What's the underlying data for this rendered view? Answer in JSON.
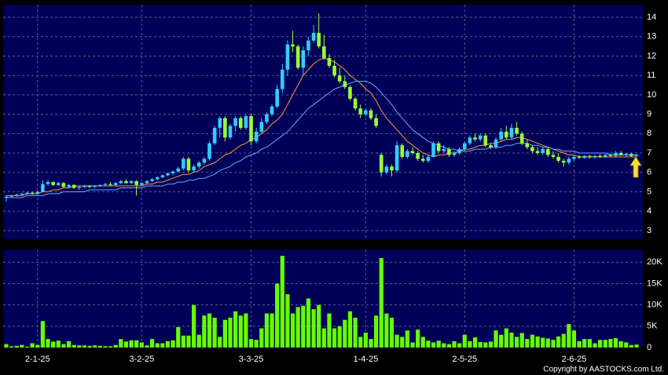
{
  "chart_data": {
    "type": "candlestick",
    "categories": [
      null,
      null,
      null,
      null,
      null,
      null,
      "2-1-25",
      null,
      null,
      null,
      null,
      null,
      null,
      null,
      null,
      null,
      null,
      null,
      null,
      null,
      null,
      null,
      null,
      null,
      null,
      null,
      "3-2-25",
      null,
      null,
      null,
      null,
      null,
      null,
      null,
      null,
      null,
      null,
      null,
      null,
      null,
      null,
      null,
      null,
      null,
      null,
      null,
      null,
      "3-3-25",
      null,
      null,
      null,
      null,
      null,
      null,
      null,
      null,
      null,
      null,
      null,
      null,
      null,
      null,
      null,
      null,
      null,
      null,
      null,
      null,
      null,
      "1-4-25",
      null,
      null,
      null,
      null,
      null,
      null,
      null,
      null,
      null,
      null,
      null,
      null,
      null,
      null,
      null,
      null,
      null,
      null,
      "2-5-25",
      null,
      null,
      null,
      null,
      null,
      null,
      null,
      null,
      null,
      null,
      null,
      null,
      null,
      null,
      null,
      null,
      null,
      null,
      null,
      null,
      "2-6-25",
      null,
      null,
      null,
      null,
      null,
      null,
      null,
      null,
      null,
      null,
      null,
      null
    ],
    "ohlc": [
      [
        4.7,
        4.8,
        4.5,
        4.75
      ],
      [
        4.75,
        4.85,
        4.7,
        4.8
      ],
      [
        4.8,
        4.9,
        4.75,
        4.85
      ],
      [
        4.85,
        4.95,
        4.8,
        4.9
      ],
      [
        4.9,
        5.0,
        4.85,
        4.95
      ],
      [
        4.95,
        5.0,
        4.85,
        4.9
      ],
      [
        4.9,
        5.05,
        4.85,
        5.0
      ],
      [
        5.0,
        5.6,
        5.0,
        5.4
      ],
      [
        5.4,
        5.6,
        5.3,
        5.5
      ],
      [
        5.5,
        5.55,
        5.3,
        5.35
      ],
      [
        5.35,
        5.5,
        5.3,
        5.45
      ],
      [
        5.45,
        5.5,
        5.2,
        5.25
      ],
      [
        5.25,
        5.4,
        5.2,
        5.35
      ],
      [
        5.35,
        5.4,
        5.15,
        5.2
      ],
      [
        5.2,
        5.3,
        5.1,
        5.25
      ],
      [
        5.25,
        5.35,
        5.2,
        5.3
      ],
      [
        5.3,
        5.35,
        5.2,
        5.25
      ],
      [
        5.25,
        5.35,
        5.2,
        5.3
      ],
      [
        5.3,
        5.4,
        5.25,
        5.35
      ],
      [
        5.35,
        5.45,
        5.3,
        5.4
      ],
      [
        5.4,
        5.5,
        5.3,
        5.35
      ],
      [
        5.35,
        5.5,
        5.3,
        5.45
      ],
      [
        5.45,
        5.6,
        5.4,
        5.55
      ],
      [
        5.55,
        5.65,
        5.4,
        5.45
      ],
      [
        5.45,
        5.6,
        5.4,
        5.55
      ],
      [
        5.55,
        5.6,
        4.8,
        5.35
      ],
      [
        5.35,
        5.5,
        5.3,
        5.45
      ],
      [
        5.45,
        5.6,
        5.4,
        5.55
      ],
      [
        5.55,
        5.7,
        5.5,
        5.65
      ],
      [
        5.65,
        5.8,
        5.6,
        5.75
      ],
      [
        5.75,
        5.9,
        5.7,
        5.85
      ],
      [
        5.85,
        6.0,
        5.8,
        5.95
      ],
      [
        5.95,
        6.1,
        5.85,
        6.05
      ],
      [
        6.05,
        6.3,
        6.0,
        6.2
      ],
      [
        6.2,
        6.8,
        6.1,
        6.7
      ],
      [
        6.7,
        6.8,
        6.0,
        6.1
      ],
      [
        6.1,
        6.4,
        6.0,
        6.3
      ],
      [
        6.3,
        6.6,
        6.2,
        6.5
      ],
      [
        6.5,
        6.8,
        6.4,
        6.7
      ],
      [
        6.7,
        7.6,
        6.6,
        7.5
      ],
      [
        7.5,
        8.4,
        7.4,
        8.3
      ],
      [
        8.3,
        8.9,
        7.8,
        8.8
      ],
      [
        8.8,
        8.9,
        7.6,
        7.8
      ],
      [
        7.8,
        8.5,
        7.7,
        8.4
      ],
      [
        8.4,
        8.9,
        8.1,
        8.8
      ],
      [
        8.8,
        8.9,
        8.2,
        8.3
      ],
      [
        8.3,
        9.0,
        8.2,
        8.9
      ],
      [
        8.9,
        9.0,
        7.4,
        7.6
      ],
      [
        7.6,
        8.3,
        7.5,
        8.1
      ],
      [
        8.1,
        8.8,
        8.0,
        8.6
      ],
      [
        8.6,
        9.1,
        8.5,
        9.0
      ],
      [
        9.0,
        9.5,
        8.9,
        9.4
      ],
      [
        9.4,
        10.5,
        9.3,
        10.3
      ],
      [
        10.3,
        11.6,
        10.1,
        11.3
      ],
      [
        11.3,
        12.8,
        11.0,
        12.6
      ],
      [
        12.6,
        13.3,
        12.2,
        12.5
      ],
      [
        12.5,
        12.6,
        11.3,
        11.4
      ],
      [
        11.4,
        12.5,
        11.0,
        12.3
      ],
      [
        12.3,
        13.0,
        12.0,
        12.8
      ],
      [
        12.8,
        13.6,
        12.7,
        13.2
      ],
      [
        13.2,
        14.2,
        12.4,
        12.5
      ],
      [
        12.5,
        13.1,
        11.8,
        11.9
      ],
      [
        11.9,
        12.1,
        11.4,
        11.5
      ],
      [
        11.5,
        11.8,
        10.9,
        11.0
      ],
      [
        11.0,
        11.4,
        10.6,
        10.7
      ],
      [
        10.7,
        11.0,
        10.3,
        10.4
      ],
      [
        10.4,
        10.5,
        9.7,
        9.8
      ],
      [
        9.8,
        9.9,
        9.2,
        9.3
      ],
      [
        9.3,
        9.5,
        8.8,
        9.0
      ],
      [
        9.0,
        9.3,
        8.9,
        9.2
      ],
      [
        9.2,
        9.3,
        8.7,
        8.8
      ],
      [
        8.8,
        9.0,
        8.3,
        8.4
      ],
      [
        6.9,
        7.0,
        5.8,
        6.0
      ],
      [
        6.0,
        6.4,
        5.9,
        6.3
      ],
      [
        6.3,
        6.4,
        5.8,
        6.1
      ],
      [
        6.1,
        7.6,
        6.0,
        7.4
      ],
      [
        7.4,
        7.5,
        6.7,
        6.8
      ],
      [
        6.8,
        7.2,
        6.7,
        7.1
      ],
      [
        7.1,
        7.3,
        6.9,
        7.0
      ],
      [
        7.0,
        7.1,
        6.6,
        6.7
      ],
      [
        6.7,
        6.9,
        6.5,
        6.6
      ],
      [
        6.6,
        6.9,
        6.5,
        6.8
      ],
      [
        6.8,
        7.6,
        6.8,
        7.5
      ],
      [
        7.5,
        7.6,
        7.0,
        7.1
      ],
      [
        7.1,
        7.4,
        7.0,
        7.2
      ],
      [
        7.2,
        7.3,
        6.8,
        6.9
      ],
      [
        6.9,
        7.1,
        6.8,
        7.0
      ],
      [
        7.0,
        7.3,
        6.9,
        7.2
      ],
      [
        7.2,
        7.6,
        7.1,
        7.5
      ],
      [
        7.5,
        7.9,
        7.4,
        7.8
      ],
      [
        7.8,
        8.0,
        7.6,
        7.7
      ],
      [
        7.7,
        8.0,
        7.6,
        7.9
      ],
      [
        7.9,
        8.0,
        7.3,
        7.4
      ],
      [
        7.4,
        7.5,
        7.2,
        7.3
      ],
      [
        7.3,
        7.8,
        7.2,
        7.7
      ],
      [
        7.7,
        8.3,
        7.6,
        8.1
      ],
      [
        8.1,
        8.4,
        7.7,
        7.8
      ],
      [
        7.8,
        8.5,
        7.7,
        8.3
      ],
      [
        8.3,
        8.6,
        7.9,
        8.0
      ],
      [
        8.0,
        8.1,
        7.4,
        7.5
      ],
      [
        7.5,
        7.7,
        7.2,
        7.3
      ],
      [
        7.3,
        7.4,
        7.0,
        7.1
      ],
      [
        7.1,
        7.3,
        6.9,
        7.0
      ],
      [
        7.0,
        7.3,
        6.9,
        7.2
      ],
      [
        7.2,
        7.3,
        6.8,
        6.9
      ],
      [
        6.9,
        7.1,
        6.7,
        6.8
      ],
      [
        6.8,
        7.0,
        6.5,
        6.6
      ],
      [
        6.6,
        6.7,
        6.3,
        6.5
      ],
      [
        6.5,
        6.8,
        6.4,
        6.7
      ],
      [
        6.7,
        6.9,
        6.6,
        6.8
      ],
      [
        6.8,
        6.9,
        6.7,
        6.75
      ],
      [
        6.75,
        6.9,
        6.7,
        6.85
      ],
      [
        6.85,
        6.9,
        6.7,
        6.8
      ],
      [
        6.8,
        6.9,
        6.7,
        6.85
      ],
      [
        6.85,
        6.95,
        6.75,
        6.8
      ],
      [
        6.8,
        6.95,
        6.75,
        6.9
      ],
      [
        6.9,
        7.0,
        6.8,
        6.85
      ],
      [
        6.85,
        7.1,
        6.8,
        7.0
      ],
      [
        7.0,
        7.1,
        6.85,
        6.9
      ],
      [
        6.9,
        7.0,
        6.8,
        6.95
      ],
      [
        6.95,
        7.0,
        6.8,
        6.85
      ],
      [
        6.85,
        6.95,
        6.8,
        6.9
      ]
    ],
    "up_color": "#33ccff",
    "down_color": "#99ff33",
    "ma": [
      {
        "color": "#ff9933",
        "values": [
          4.8,
          4.8,
          4.8,
          4.8,
          4.9,
          4.9,
          4.9,
          5.0,
          5.0,
          5.1,
          5.1,
          5.2,
          5.2,
          5.3,
          5.3,
          5.3,
          5.3,
          5.3,
          5.3,
          5.3,
          5.3,
          5.3,
          5.3,
          5.3,
          5.3,
          5.3,
          5.3,
          5.4,
          5.4,
          5.5,
          5.5,
          5.6,
          5.7,
          5.8,
          5.9,
          5.9,
          6.0,
          6.1,
          6.3,
          6.4,
          6.5,
          6.7,
          6.9,
          7.0,
          7.2,
          7.4,
          7.5,
          7.7,
          7.8,
          8.0,
          8.2,
          8.5,
          8.7,
          9.0,
          9.5,
          10.0,
          10.5,
          11.0,
          11.3,
          11.6,
          11.8,
          11.9,
          11.8,
          11.7,
          11.5,
          11.3,
          11.0,
          10.8,
          10.6,
          10.3,
          10.1,
          9.7,
          9.2,
          8.8,
          8.5,
          8.2,
          7.9,
          7.6,
          7.4,
          7.2,
          7.0,
          6.9,
          6.8,
          6.9,
          6.9,
          7.0,
          7.0,
          7.1,
          7.2,
          7.2,
          7.3,
          7.4,
          7.4,
          7.5,
          7.5,
          7.6,
          7.7,
          7.7,
          7.8,
          7.8,
          7.7,
          7.6,
          7.5,
          7.4,
          7.3,
          7.2,
          7.1,
          7.0,
          6.9,
          6.9,
          6.8,
          6.8,
          6.8,
          6.8,
          6.8,
          6.8,
          6.8,
          6.8,
          6.8,
          6.8,
          6.8,
          6.8
        ]
      },
      {
        "color": "#66aaff",
        "values": [
          4.7,
          4.7,
          4.7,
          4.7,
          4.8,
          4.8,
          4.8,
          4.8,
          4.9,
          4.9,
          4.9,
          5.0,
          5.0,
          5.0,
          5.0,
          5.0,
          5.1,
          5.1,
          5.1,
          5.1,
          5.1,
          5.1,
          5.2,
          5.2,
          5.2,
          5.2,
          5.2,
          5.3,
          5.3,
          5.3,
          5.3,
          5.4,
          5.4,
          5.5,
          5.5,
          5.6,
          5.6,
          5.7,
          5.7,
          5.8,
          5.9,
          6.1,
          6.2,
          6.3,
          6.5,
          6.6,
          6.8,
          6.9,
          7.0,
          7.2,
          7.3,
          7.5,
          7.7,
          7.9,
          8.1,
          8.4,
          8.7,
          9.0,
          9.3,
          9.5,
          9.7,
          9.9,
          10.1,
          10.3,
          10.4,
          10.5,
          10.6,
          10.7,
          10.7,
          10.7,
          10.6,
          10.4,
          10.1,
          9.8,
          9.5,
          9.1,
          8.8,
          8.5,
          8.2,
          8.0,
          7.8,
          7.6,
          7.5,
          7.4,
          7.3,
          7.2,
          7.2,
          7.1,
          7.1,
          7.1,
          7.2,
          7.2,
          7.2,
          7.3,
          7.3,
          7.3,
          7.4,
          7.4,
          7.5,
          7.5,
          7.5,
          7.4,
          7.4,
          7.3,
          7.3,
          7.2,
          7.2,
          7.1,
          7.1,
          7.1,
          7.0,
          7.0,
          7.0,
          7.0,
          7.0,
          7.0,
          6.9,
          6.9,
          6.9,
          6.9,
          6.9,
          6.9
        ]
      }
    ],
    "ylim": [
      2.55,
      14.65
    ],
    "yticks": [
      3,
      4,
      5,
      6,
      7,
      8,
      9,
      10,
      11,
      12,
      13,
      14
    ],
    "volume": [
      800,
      300,
      400,
      600,
      200,
      1000,
      600,
      6200,
      2000,
      1400,
      1600,
      800,
      1500,
      600,
      500,
      500,
      400,
      500,
      400,
      300,
      300,
      600,
      2000,
      1400,
      1700,
      1700,
      1200,
      500,
      2000,
      1000,
      1000,
      1500,
      1700,
      4800,
      2800,
      2800,
      10000,
      3000,
      7500,
      8000,
      7000,
      2500,
      6500,
      7000,
      8500,
      7500,
      8000,
      2000,
      1800,
      4500,
      8000,
      8000,
      15000,
      21500,
      12500,
      8000,
      9500,
      9800,
      11500,
      9000,
      10000,
      4500,
      8000,
      4500,
      5000,
      6500,
      8500,
      7000,
      2500,
      3500,
      2000,
      7500,
      21000,
      8000,
      7000,
      3000,
      2500,
      4000,
      1200,
      4200,
      2500,
      1600,
      1200,
      1600,
      1000,
      800,
      1500,
      1000,
      3000,
      1500,
      2400,
      1300,
      1200,
      1400,
      4000,
      3000,
      4500,
      3500,
      2500,
      3400,
      2000,
      3000,
      2600,
      2300,
      2100,
      1800,
      2600,
      3200,
      5500,
      4000,
      1500,
      2000,
      2000,
      1000,
      1800,
      1800,
      2000,
      2200,
      1500,
      1200,
      600,
      700
    ],
    "volume_color": "#66ff00",
    "volume_ylim": [
      0,
      23000
    ],
    "volume_yticks": [
      0,
      {
        "value": 5000,
        "label": "5K"
      },
      {
        "value": 10000,
        "label": "10K"
      },
      {
        "value": 15000,
        "label": "15K"
      },
      {
        "value": 20000,
        "label": "20K"
      }
    ],
    "grid": true,
    "copyright": "Copyright by AASTOCKS.com Ltd."
  }
}
